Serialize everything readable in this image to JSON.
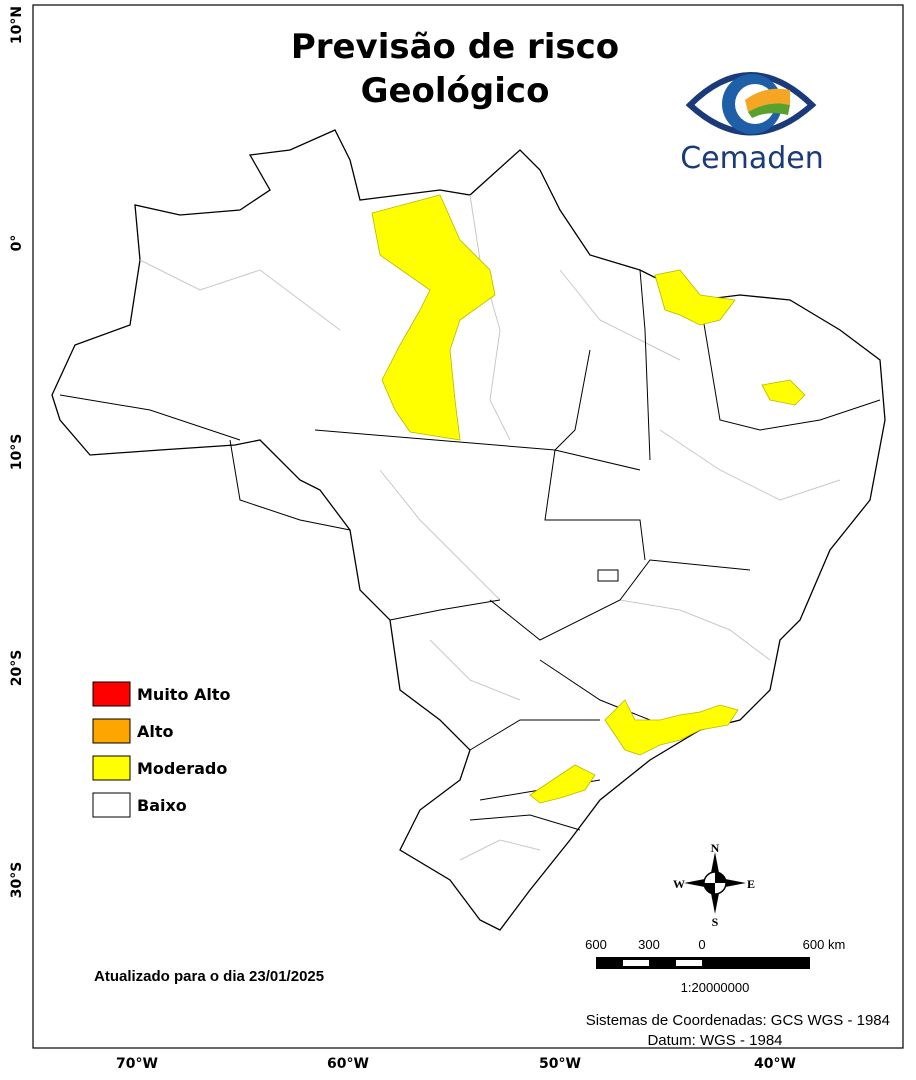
{
  "header": {
    "title_lines": [
      "Previsão de risco",
      "Geológico"
    ],
    "logo_text": "Cemaden"
  },
  "legend": {
    "items": [
      {
        "label": "Muito Alto",
        "color": "#ff0000"
      },
      {
        "label": "Alto",
        "color": "#ffa500"
      },
      {
        "label": "Moderado",
        "color": "#ffff00"
      },
      {
        "label": "Baixo",
        "color": "#ffffff"
      }
    ]
  },
  "axes": {
    "lat_labels": [
      "10°N",
      "0°",
      "10°S",
      "20°S",
      "30°S"
    ],
    "lon_labels": [
      "70°W",
      "60°W",
      "50°W",
      "40°W"
    ]
  },
  "compass": {
    "n": "N",
    "s": "S",
    "e": "E",
    "w": "W"
  },
  "scale_bar": {
    "labels": [
      "600",
      "300",
      "0",
      "600 km"
    ],
    "ratio": "1:20000000"
  },
  "footer": {
    "updated": "Atualizado para o dia 23/01/2025",
    "coordinate_system": "Sistemas de Coordenadas: GCS WGS - 1984",
    "datum": "Datum: WGS - 1984"
  }
}
